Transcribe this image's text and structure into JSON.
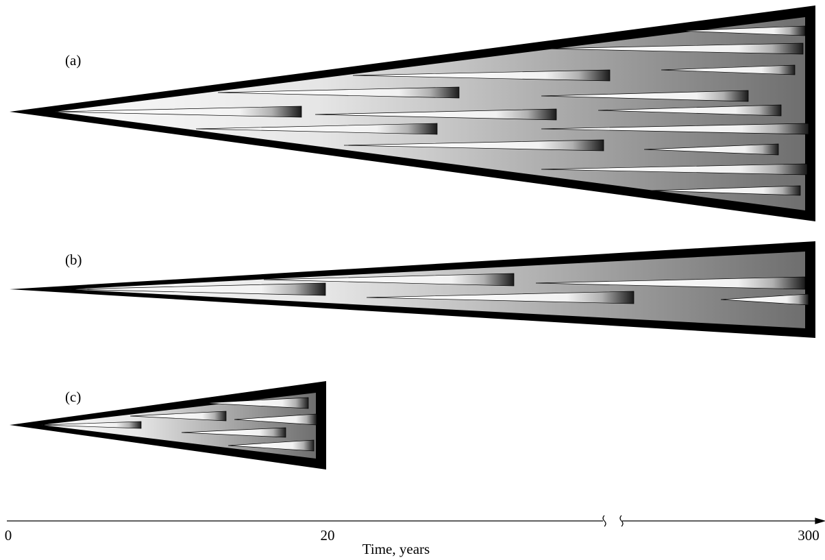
{
  "panels": [
    {
      "label": "(a)"
    },
    {
      "label": "(b)"
    },
    {
      "label": "(c)"
    }
  ],
  "axis": {
    "ticks": [
      "0",
      "20",
      "300"
    ],
    "title": "Time, years"
  }
}
